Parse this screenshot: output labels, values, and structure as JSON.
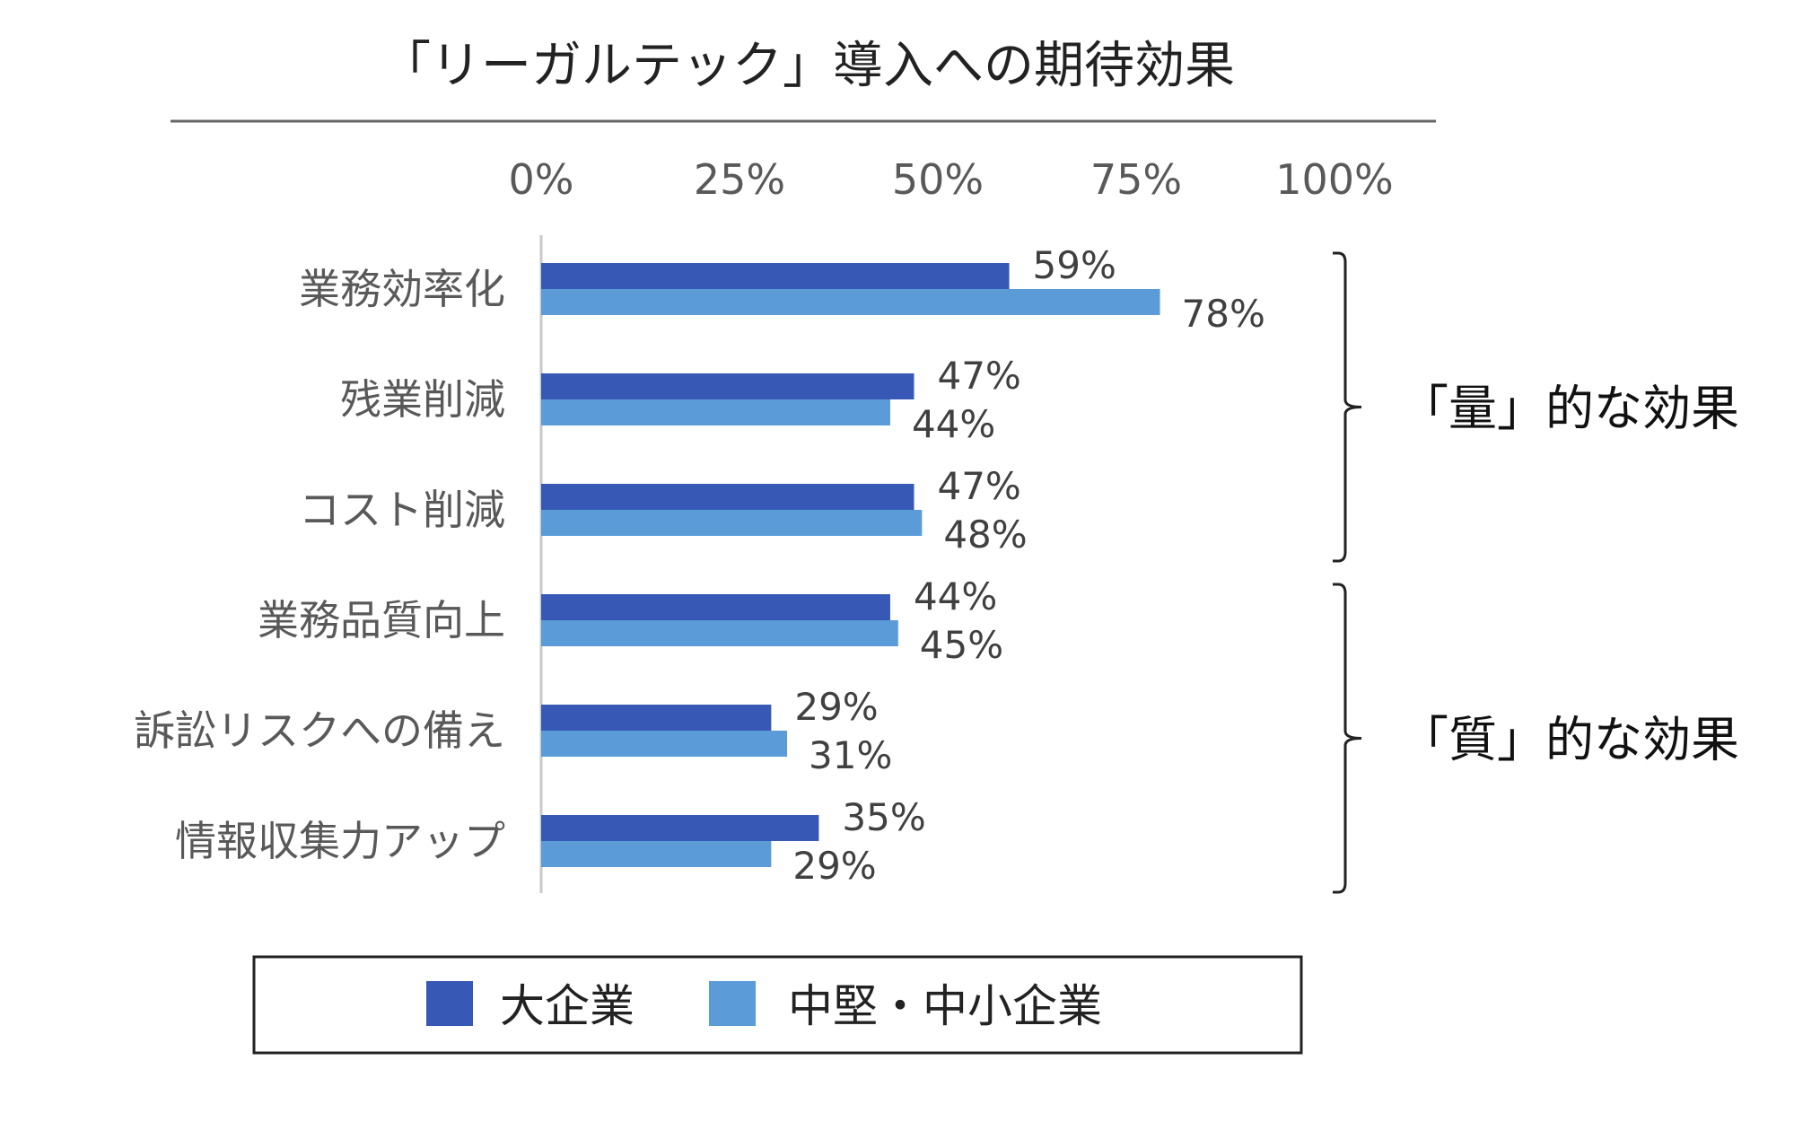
{
  "chart_data": {
    "type": "bar",
    "orientation": "horizontal",
    "title": "「リーガルテック」導入への期待効果",
    "xlabel": "",
    "ylabel": "",
    "xlim": [
      0,
      100
    ],
    "x_ticks": [
      "0%",
      "25%",
      "50%",
      "75%",
      "100%"
    ],
    "categories": [
      "業務効率化",
      "残業削減",
      "コスト削減",
      "業務品質向上",
      "訴訟リスクへの備え",
      "情報収集力アップ"
    ],
    "series": [
      {
        "name": "大企業",
        "color": "#3758b4",
        "values": [
          59,
          47,
          47,
          44,
          29,
          35
        ],
        "labels": [
          "59%",
          "47%",
          "47%",
          "44%",
          "29%",
          "35%"
        ]
      },
      {
        "name": "中堅・中小企業",
        "color": "#5b9bd8",
        "values": [
          78,
          44,
          48,
          45,
          31,
          29
        ],
        "labels": [
          "78%",
          "44%",
          "48%",
          "45%",
          "31%",
          "29%"
        ]
      }
    ],
    "groups": [
      {
        "label": "「量」的な効果",
        "from": 0,
        "to": 2
      },
      {
        "label": "「質」的な効果",
        "from": 3,
        "to": 5
      }
    ],
    "legend_position": "bottom",
    "grid": false
  }
}
